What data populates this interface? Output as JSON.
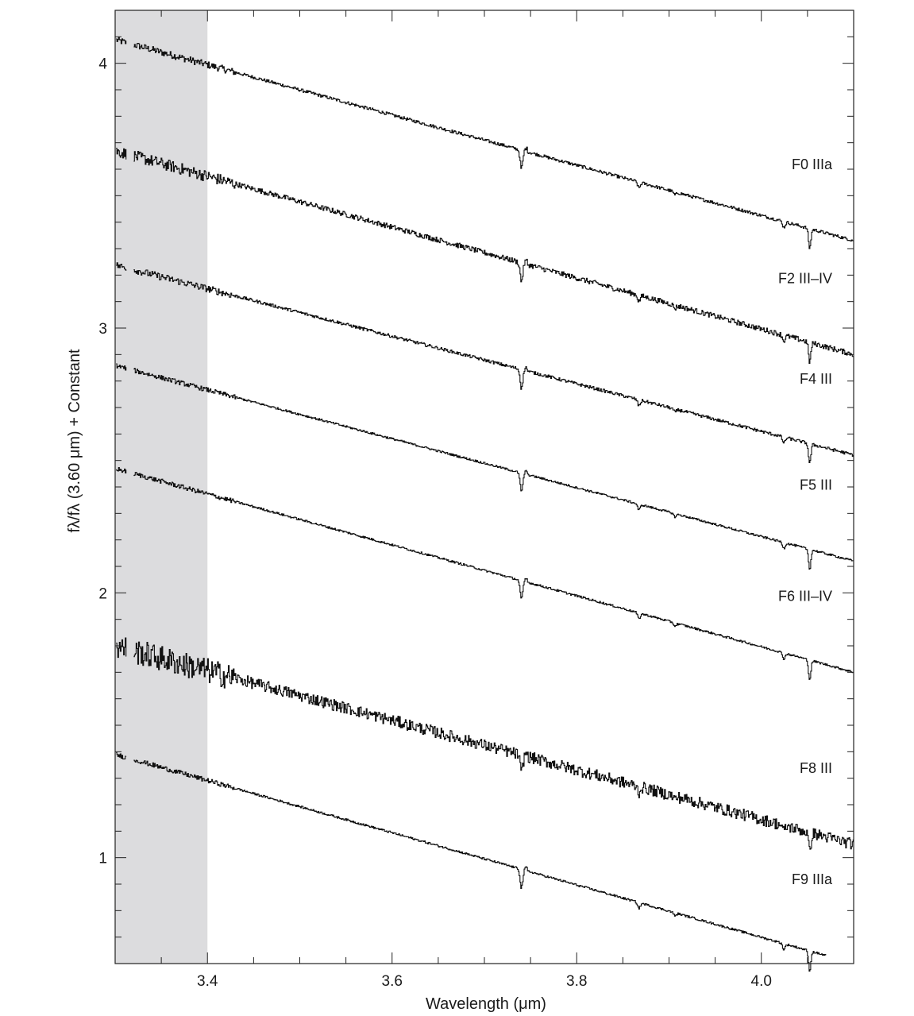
{
  "chart_data": {
    "type": "line",
    "title": "",
    "xlabel": "Wavelength (μm)",
    "ylabel": "fλ/fλ (3.60 μm) + Constant",
    "xlim": [
      3.3,
      4.1
    ],
    "ylim": [
      0.6,
      4.2
    ],
    "x_ticks": [
      3.4,
      3.6,
      3.8,
      4.0
    ],
    "x_tick_labels": [
      "3.4",
      "3.6",
      "3.8",
      "4.0"
    ],
    "y_ticks": [
      1,
      2,
      3,
      4
    ],
    "y_tick_labels": [
      "1",
      "2",
      "3",
      "4"
    ],
    "shaded_region": {
      "x": [
        3.3,
        3.4
      ],
      "color": "#dcdcde"
    },
    "line_color": "#111111",
    "grid": false,
    "absorption_lines_um": [
      3.74,
      3.867,
      4.052
    ],
    "series": [
      {
        "name": "F0 IIIa",
        "x_start": 3.32,
        "x_end": 4.1,
        "y_start": 4.07,
        "y_end": 3.33,
        "noise": 0.006
      },
      {
        "name": "F2 III–IV",
        "x_start": 3.32,
        "x_end": 4.1,
        "y_start": 3.65,
        "y_end": 2.9,
        "noise": 0.01
      },
      {
        "name": "F4 III",
        "x_start": 3.32,
        "x_end": 4.1,
        "y_start": 3.22,
        "y_end": 2.52,
        "noise": 0.006
      },
      {
        "name": "F5 III",
        "x_start": 3.32,
        "x_end": 4.1,
        "y_start": 2.84,
        "y_end": 2.12,
        "noise": 0.004
      },
      {
        "name": "F6 III–IV",
        "x_start": 3.32,
        "x_end": 4.1,
        "y_start": 2.45,
        "y_end": 1.7,
        "noise": 0.004
      },
      {
        "name": "F8 III",
        "x_start": 3.32,
        "x_end": 4.1,
        "y_start": 1.78,
        "y_end": 1.05,
        "noise": 0.022
      },
      {
        "name": "F9 IIIa",
        "x_start": 3.32,
        "x_end": 4.07,
        "y_start": 1.37,
        "y_end": 0.63,
        "noise": 0.004
      }
    ]
  }
}
